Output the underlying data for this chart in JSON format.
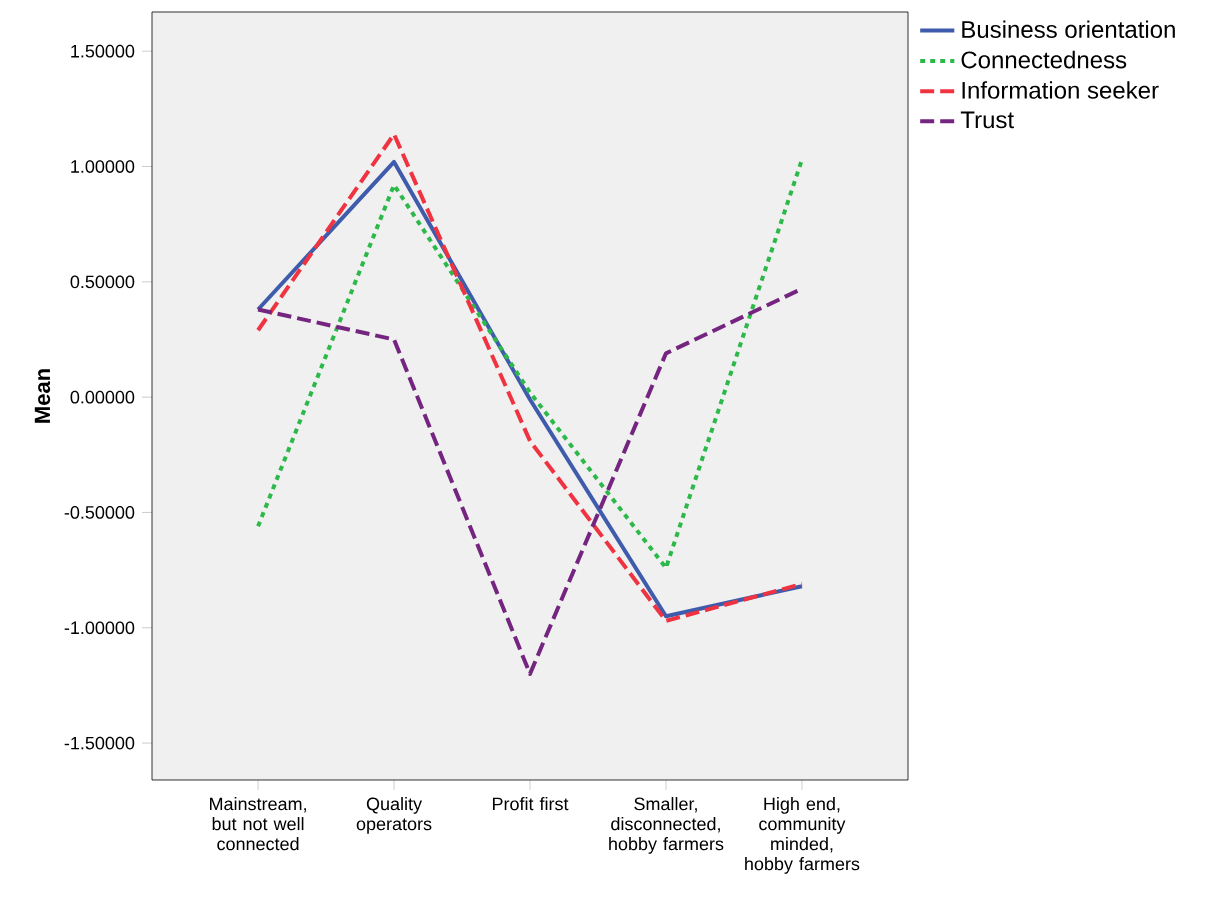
{
  "chart_data": {
    "type": "line",
    "ylabel": "Mean",
    "categories": [
      "Mainstream, but not well connected",
      "Quality operators",
      "Profit first",
      "Smaller, disconnected, hobby farmers",
      "High end, community minded, hobby farmers"
    ],
    "series": [
      {
        "name": "Business orientation",
        "color": "#3f5bab",
        "line_style": "solid",
        "values": [
          0.38,
          1.02,
          -0.01,
          -0.95,
          -0.82
        ]
      },
      {
        "name": "Connectedness",
        "color": "#2db84a",
        "line_style": "dotted",
        "values": [
          -0.56,
          0.92,
          0.02,
          -0.74,
          1.03
        ]
      },
      {
        "name": "Information seeker",
        "color": "#ef3340",
        "line_style": "dashed",
        "values": [
          0.29,
          1.14,
          -0.19,
          -0.97,
          -0.81
        ]
      },
      {
        "name": "Trust",
        "color": "#74257f",
        "line_style": "dashed",
        "values": [
          0.38,
          0.25,
          -1.2,
          0.19,
          0.47
        ]
      }
    ],
    "ylim": [
      -1.66,
      1.67
    ],
    "yticks": [
      {
        "value": -1.5,
        "label": "-1.50000"
      },
      {
        "value": -1.0,
        "label": "-1.00000"
      },
      {
        "value": -0.5,
        "label": "-0.50000"
      },
      {
        "value": 0,
        "label": "0.00000"
      },
      {
        "value": 0.5,
        "label": "0.50000"
      },
      {
        "value": 1.0,
        "label": "1.00000"
      },
      {
        "value": 1.5,
        "label": "1.50000"
      }
    ],
    "grid": false,
    "legend": "top right",
    "marker": "none"
  }
}
